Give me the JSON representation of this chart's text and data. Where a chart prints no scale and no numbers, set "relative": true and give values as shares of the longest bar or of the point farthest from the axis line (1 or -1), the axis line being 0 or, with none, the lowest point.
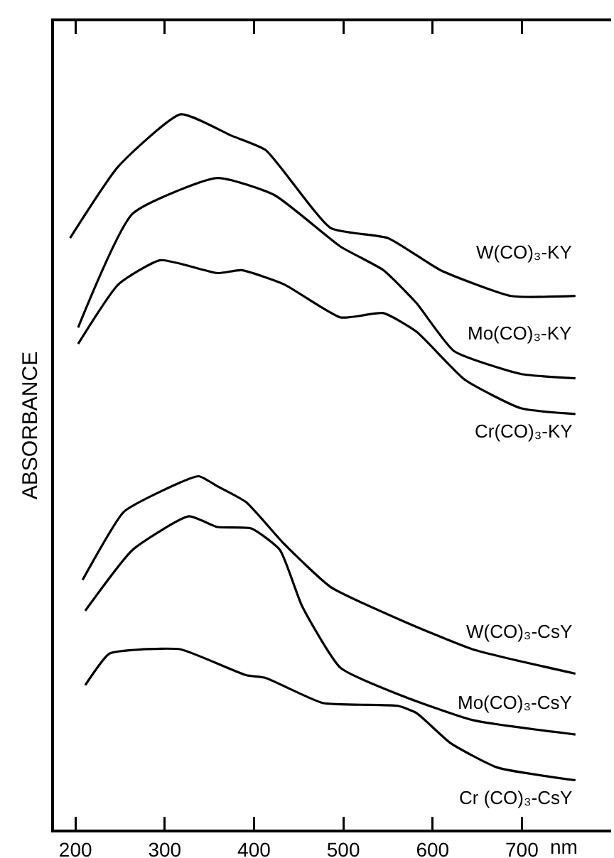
{
  "chart_data": {
    "type": "line",
    "relative": true,
    "xlabel": "nm",
    "ylabel": "ABSORBANCE",
    "xlim": [
      176,
      800
    ],
    "xticks": [
      200,
      300,
      400,
      500,
      600,
      700
    ],
    "grid": false,
    "legend": false,
    "marker": "none",
    "line_style": "solid",
    "series": [
      {
        "name": "W(CO)₃-KY",
        "color": "#000000",
        "x": [
          194,
          248,
          318,
          375,
          413,
          486,
          550,
          609,
          688,
          760
        ],
        "values": [
          0.827,
          0.927,
          1.0,
          0.97,
          0.95,
          0.841,
          0.827,
          0.782,
          0.746,
          0.746
        ]
      },
      {
        "name": "Mo(CO)₃-KY",
        "color": "#000000",
        "x": [
          203,
          264,
          359,
          423,
          497,
          545,
          582,
          624,
          699,
          760
        ],
        "values": [
          0.702,
          0.861,
          0.911,
          0.887,
          0.815,
          0.782,
          0.736,
          0.669,
          0.637,
          0.631
        ]
      },
      {
        "name": "Cr(CO)₃-KY",
        "color": "#000000",
        "x": [
          203,
          248,
          295,
          359,
          386,
          434,
          497,
          545,
          582,
          636,
          699,
          760
        ],
        "values": [
          0.679,
          0.762,
          0.796,
          0.778,
          0.782,
          0.762,
          0.716,
          0.722,
          0.696,
          0.629,
          0.589,
          0.581
        ]
      },
      {
        "name": "W(CO)₃-CsY",
        "color": "#000000",
        "x": [
          208,
          254,
          291,
          338,
          359,
          391,
          434,
          486,
          566,
          645,
          760
        ],
        "values": [
          0.349,
          0.444,
          0.47,
          0.494,
          0.48,
          0.458,
          0.399,
          0.339,
          0.292,
          0.252,
          0.218
        ]
      },
      {
        "name": "Mo(CO)₃-CsY",
        "color": "#000000",
        "x": [
          211,
          264,
          327,
          359,
          397,
          429,
          454,
          497,
          566,
          645,
          760
        ],
        "values": [
          0.306,
          0.391,
          0.438,
          0.423,
          0.421,
          0.391,
          0.312,
          0.226,
          0.187,
          0.153,
          0.133
        ]
      },
      {
        "name": "Cr (CO)₃-CsY",
        "color": "#000000",
        "x": [
          211,
          238,
          275,
          318,
          391,
          413,
          477,
          561,
          582,
          620,
          672,
          760
        ],
        "values": [
          0.202,
          0.246,
          0.252,
          0.252,
          0.216,
          0.212,
          0.177,
          0.173,
          0.163,
          0.121,
          0.087,
          0.069
        ]
      }
    ]
  }
}
